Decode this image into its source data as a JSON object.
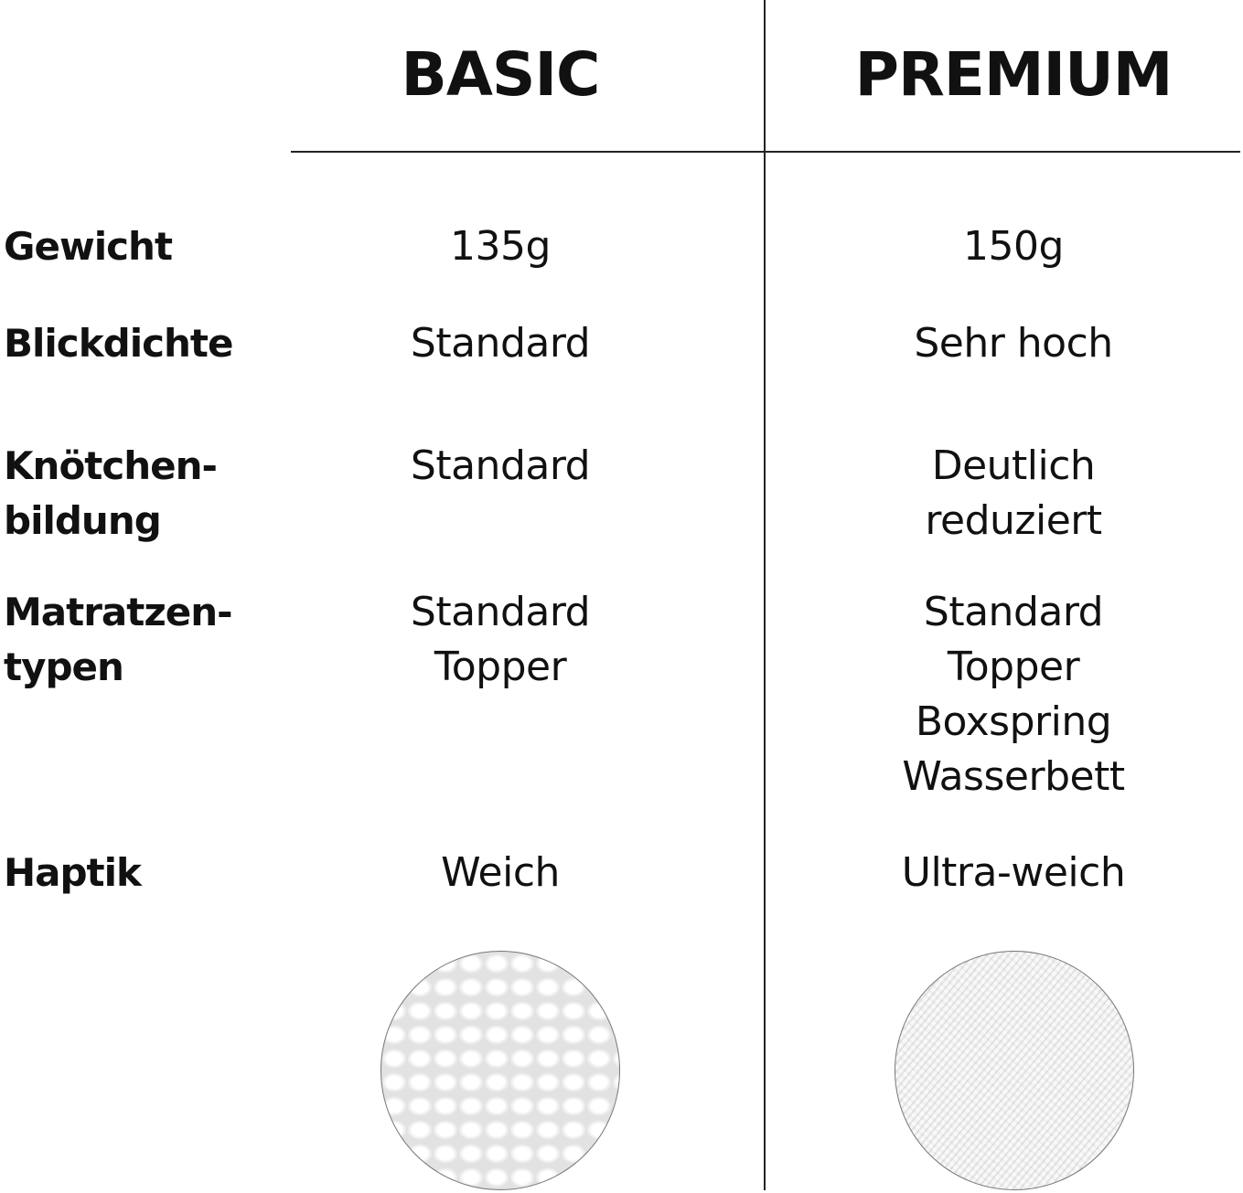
{
  "columns": {
    "basic": "BASIC",
    "premium": "PREMIUM"
  },
  "rows": [
    {
      "label": [
        "Gewicht"
      ],
      "basic": [
        "135g"
      ],
      "premium": [
        "150g"
      ]
    },
    {
      "label": [
        "Blickdichte"
      ],
      "basic": [
        "Standard"
      ],
      "premium": [
        "Sehr hoch"
      ]
    },
    {
      "label": [
        "Knötchen-",
        "bildung"
      ],
      "basic": [
        "Standard"
      ],
      "premium": [
        "Deutlich",
        "reduziert"
      ]
    },
    {
      "label": [
        "Matratzen-",
        "typen"
      ],
      "basic": [
        "Standard",
        "Topper"
      ],
      "premium": [
        "Standard",
        "Topper",
        "Boxspring",
        "Wasserbett"
      ]
    },
    {
      "label": [
        "Haptik"
      ],
      "basic": [
        "Weich"
      ],
      "premium": [
        "Ultra-weich"
      ]
    }
  ],
  "images": {
    "basic": "coarse-weave-texture",
    "premium": "fine-terry-texture"
  }
}
